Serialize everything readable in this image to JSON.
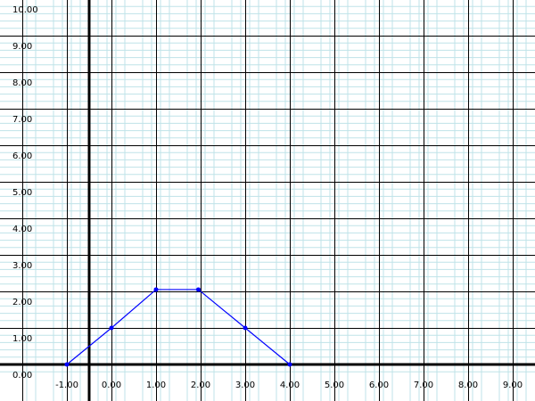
{
  "chart_data": {
    "type": "line",
    "xlim": [
      -1.5,
      10.5
    ],
    "ylim": [
      -0.25,
      10.8
    ],
    "grid": true,
    "minor_grid": true,
    "x_tick_values": [
      -1,
      0,
      1,
      2,
      3,
      4,
      5,
      6,
      7,
      8,
      9
    ],
    "x_tick_labels": [
      "-1.00",
      "0.00",
      "1.00",
      "2.00",
      "3.00",
      "4.00",
      "5.00",
      "6.00",
      "7.00",
      "8.00",
      "9.00"
    ],
    "y_tick_values": [
      0,
      1,
      2,
      3,
      4,
      5,
      6,
      7,
      8,
      9,
      10
    ],
    "y_tick_labels": [
      "0.00",
      "1.00",
      "2.00",
      "3.00",
      "4.00",
      "5.00",
      "6.00",
      "7.00",
      "8.00",
      "9.00",
      "10.00"
    ],
    "series": [
      {
        "color": "#0000ff",
        "points": [
          {
            "x": -0.5,
            "y": 0
          },
          {
            "x": 0.5,
            "y": 1
          },
          {
            "x": 1.5,
            "y": 2.05
          },
          {
            "x": 2.45,
            "y": 2.05
          },
          {
            "x": 3.5,
            "y": 1
          },
          {
            "x": 4.5,
            "y": 0
          }
        ]
      }
    ]
  },
  "colors": {
    "minor_grid": "#bfe3e8",
    "major_grid": "#000000",
    "axis": "#000000",
    "series": "#0000ff"
  }
}
